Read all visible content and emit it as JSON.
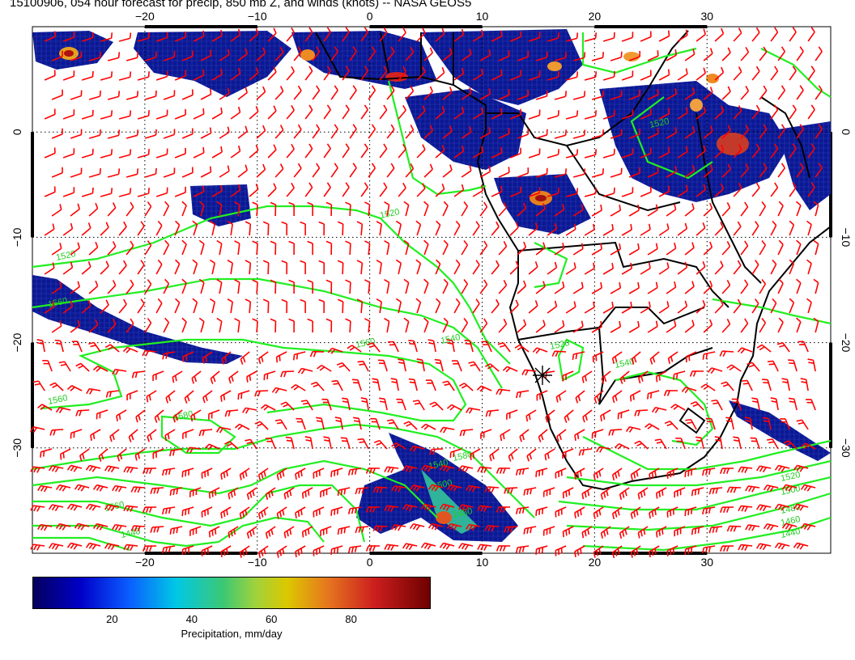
{
  "title": "15100906, 054 hour forecast for precip, 850 mb Z, and winds (knots) -- NASA GEOS5",
  "axes": {
    "lon_ticks": [
      "−20",
      "−10",
      "0",
      "10",
      "20",
      "30"
    ],
    "lon_values": [
      -20,
      -10,
      0,
      10,
      20,
      30
    ],
    "lat_ticks": [
      "0",
      "−10",
      "−20",
      "−30"
    ],
    "lat_values": [
      0,
      -10,
      -20,
      -30
    ],
    "lon_range": [
      -30,
      41
    ],
    "lat_range": [
      -40,
      10
    ]
  },
  "contour_labels": [
    "1520",
    "1520",
    "1520",
    "1520",
    "1540",
    "1540",
    "1560",
    "1560",
    "1560",
    "1580",
    "1580",
    "1560",
    "1540",
    "1500",
    "1480",
    "1440",
    "1520",
    "1500",
    "1480",
    "1460",
    "1440"
  ],
  "colorbar": {
    "label": "Precipitation, mm/day",
    "ticks": [
      "20",
      "40",
      "60",
      "80"
    ],
    "tick_values": [
      20,
      40,
      60,
      80
    ],
    "range": [
      0,
      100
    ]
  },
  "colors": {
    "wind_barbs": "#ff0000",
    "contours": "#22ee22",
    "precip_low": "#0a1090",
    "coastline": "#000000"
  }
}
